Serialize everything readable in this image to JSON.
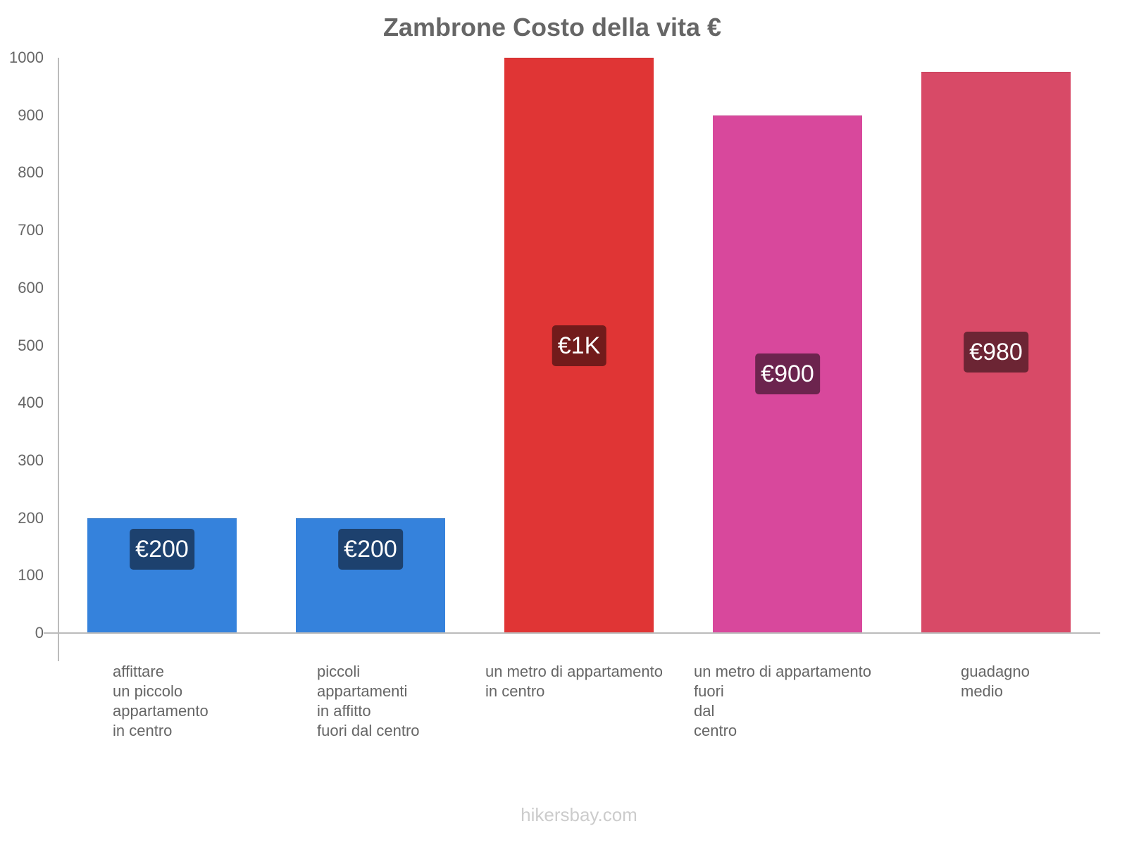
{
  "chart_data": {
    "type": "bar",
    "title": "Zambrone Costo della vita €",
    "xlabel": "",
    "ylabel": "",
    "ylim": [
      0,
      1000
    ],
    "yticks": [
      0,
      100,
      200,
      300,
      400,
      500,
      600,
      700,
      800,
      900,
      1000
    ],
    "grid": false,
    "legend": null,
    "categories": [
      "affittare un piccolo appartamento in centro",
      "piccoli appartamenti in affitto fuori dal centro",
      "un metro di appartamento in centro",
      "un metro di appartamento fuori dal centro",
      "guadagno medio"
    ],
    "values": [
      200,
      200,
      1000,
      900,
      980
    ],
    "value_labels": [
      "€200",
      "€200",
      "€1K",
      "€900",
      "€980"
    ],
    "bar_colors": [
      "#3582dc",
      "#3582dc",
      "#e03535",
      "#d8489c",
      "#d84a67"
    ]
  },
  "chart": {
    "title": "Zambrone Costo della vita €",
    "yticks": [
      "0",
      "100",
      "200",
      "300",
      "400",
      "500",
      "600",
      "700",
      "800",
      "900",
      "1000"
    ],
    "bars": [
      {
        "label_lines": "affittare\nun piccolo\nappartamento\nin centro",
        "value": 200,
        "value_label": "€200",
        "color": "#3582dc",
        "label_bg": "#1d416e"
      },
      {
        "label_lines": "piccoli\nappartamenti\nin affitto\nfuori dal centro",
        "value": 200,
        "value_label": "€200",
        "color": "#3582dc",
        "label_bg": "#1d416e"
      },
      {
        "label_lines": "un metro di appartamento\nin centro",
        "value": 1000,
        "value_label": "€1K",
        "color": "#e03535",
        "label_bg": "#721b1b"
      },
      {
        "label_lines": "un metro di appartamento\nfuori\ndal\ncentro",
        "value": 900,
        "value_label": "€900",
        "color": "#d8489c",
        "label_bg": "#6c244e"
      },
      {
        "label_lines": "guadagno\nmedio",
        "value": 976,
        "value_label": "€980",
        "color": "#d84a67",
        "label_bg": "#6c2534"
      }
    ]
  },
  "footer": {
    "watermark": "hikersbay.com"
  }
}
